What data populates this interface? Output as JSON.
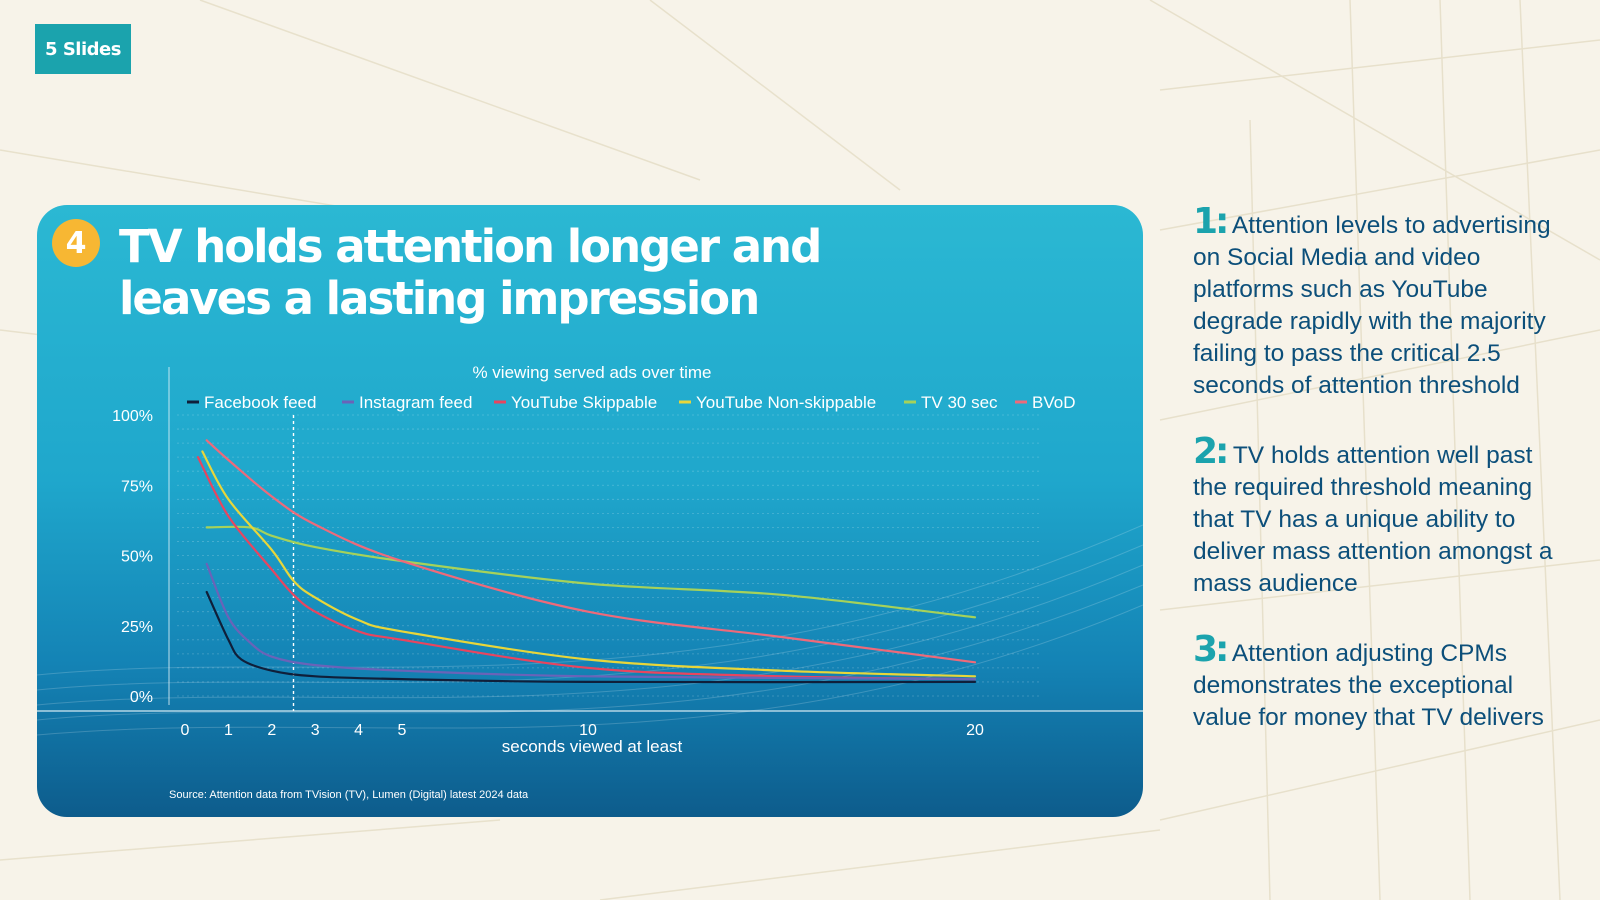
{
  "slide_tag": "5 Slides",
  "card": {
    "badge": "4",
    "headline_line1": "TV holds attention longer and",
    "headline_line2": "leaves a lasting impression",
    "source": "Source: Attention data from TVision (TV), Lumen (Digital) latest 2024 data"
  },
  "notes": [
    {
      "num": "1:",
      "text": "Attention levels to advertising on Social Media and video platforms such as YouTube degrade rapidly with the majority failing to pass the critical 2.5 seconds of attention threshold"
    },
    {
      "num": "2:",
      "text": "TV holds attention well past the required threshold meaning that TV has a unique ability to deliver mass attention amongst a mass audience"
    },
    {
      "num": "3:",
      "text": "Attention adjusting CPMs demonstrates the exceptional value for money that TV delivers"
    }
  ],
  "colors": {
    "background": "#f7f3e9",
    "accent_teal": "#1ba3ad",
    "badge_yellow": "#f7b733",
    "notes_text": "#0c4f7a"
  },
  "chart_data": {
    "type": "line",
    "title": "% viewing served ads over time",
    "xlabel": "seconds viewed at least",
    "ylabel": "",
    "x_ticks": [
      0,
      1,
      2,
      3,
      4,
      5,
      10,
      20
    ],
    "y_ticks": [
      0,
      25,
      50,
      75,
      100
    ],
    "y_tick_labels": [
      "0%",
      "25%",
      "50%",
      "75%",
      "100%"
    ],
    "ylim": [
      0,
      100
    ],
    "xlim": [
      0,
      20
    ],
    "threshold_seconds": 2.5,
    "grid": true,
    "legend_position": "top",
    "series": [
      {
        "name": "Facebook feed",
        "color": "#0f1f3a",
        "points": [
          [
            0.5,
            37
          ],
          [
            1,
            20
          ],
          [
            1.3,
            13
          ],
          [
            2,
            9
          ],
          [
            3,
            7
          ],
          [
            5,
            6
          ],
          [
            10,
            5
          ],
          [
            20,
            5
          ]
        ]
      },
      {
        "name": "Instagram feed",
        "color": "#6a63b8",
        "points": [
          [
            0.5,
            47
          ],
          [
            1,
            28
          ],
          [
            1.5,
            19
          ],
          [
            2,
            14
          ],
          [
            3,
            11
          ],
          [
            5,
            9
          ],
          [
            10,
            7
          ],
          [
            20,
            6
          ]
        ]
      },
      {
        "name": "YouTube Skippable",
        "color": "#e8455f",
        "points": [
          [
            0.3,
            85
          ],
          [
            1,
            64
          ],
          [
            2,
            45
          ],
          [
            2.5,
            36
          ],
          [
            3,
            30
          ],
          [
            4,
            23
          ],
          [
            5,
            20
          ],
          [
            10,
            10
          ],
          [
            15,
            7
          ],
          [
            20,
            6
          ]
        ]
      },
      {
        "name": "YouTube Non-skippable",
        "color": "#e8d63a",
        "points": [
          [
            0.4,
            87
          ],
          [
            1,
            70
          ],
          [
            2,
            52
          ],
          [
            2.5,
            41
          ],
          [
            3,
            35
          ],
          [
            4,
            27
          ],
          [
            5,
            23
          ],
          [
            10,
            13
          ],
          [
            15,
            9
          ],
          [
            20,
            7
          ]
        ]
      },
      {
        "name": "TV 30 sec",
        "color": "#a6d25a",
        "points": [
          [
            0.5,
            60
          ],
          [
            1.5,
            60
          ],
          [
            2,
            57
          ],
          [
            3,
            53
          ],
          [
            5,
            48
          ],
          [
            10,
            40
          ],
          [
            15,
            36
          ],
          [
            20,
            28
          ]
        ]
      },
      {
        "name": "BVoD",
        "color": "#ee6a7a",
        "points": [
          [
            0.5,
            91
          ],
          [
            1,
            84
          ],
          [
            2,
            71
          ],
          [
            3,
            61
          ],
          [
            5,
            48
          ],
          [
            10,
            30
          ],
          [
            15,
            21
          ],
          [
            20,
            12
          ]
        ]
      }
    ]
  }
}
